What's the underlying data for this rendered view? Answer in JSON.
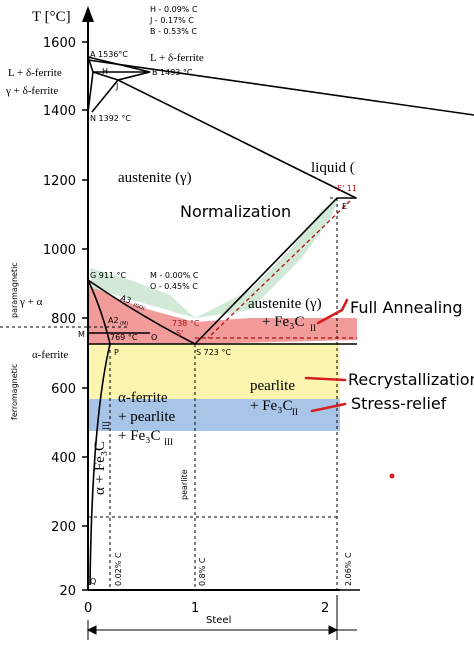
{
  "axes": {
    "y_title": "T [°C]",
    "y_ticks": [
      "1600",
      "1400",
      "1200",
      "1000",
      "800",
      "600",
      "400",
      "200",
      "20"
    ],
    "x_ticks": [
      "0",
      "1",
      "2"
    ],
    "x_label": "Steel"
  },
  "legend_carbon": [
    "H - 0.09% C",
    "J - 0.17% C",
    "B - 0.53% C"
  ],
  "points": {
    "A": "A  1536°C",
    "B": "B  1493 °C",
    "H": "H",
    "J": "J",
    "N": "N  1392 °C",
    "G": "G  911 °C",
    "M_c": "M - 0.00%  C",
    "O_c": "O - 0.45%  C",
    "E": "E",
    "E_prime": "E' 11",
    "S_prime": "S'",
    "temp_738": "738 °C",
    "temp_769": "769 °C",
    "O": "O",
    "M": "M",
    "P": "P",
    "S": "S  723 °C",
    "Q": "Q",
    "A2": "A2",
    "A2_sub": "(M)",
    "A3": "A3",
    "A3_sub": "(GO)"
  },
  "phases": {
    "l_delta_left": "L + δ-ferrite",
    "l_delta_right": "L + δ-ferrite",
    "gamma_delta": "γ + δ-ferrite",
    "austenite": "austenite (γ)",
    "liquid": "liquid (",
    "gamma_alpha": "γ + α",
    "alpha_ferrite": "α-ferrite",
    "austenite_fe3c": "austenite (γ)",
    "austenite_fe3c_2": "+ Fe₃C",
    "austenite_fe3c_sub": "II",
    "alpha_pearlite_1": "α-ferrite",
    "alpha_pearlite_2": "+ pearlite",
    "alpha_pearlite_3": "+ Fe₃C",
    "alpha_pearlite_sub": "III",
    "pearlite_1": "pearlite",
    "pearlite_2": "+ Fe₃C",
    "pearlite_sub": "II",
    "alpha_fe3c": "α + Fe₃C",
    "alpha_fe3c_sub": "III",
    "paramagnetic": "paramagnetic",
    "ferromagnetic": "ferromagnetic",
    "pearlite_vertical": "pearlite"
  },
  "verticals": {
    "c002": "0.02% C",
    "c08": "0.8% C",
    "c206": "2.06% C"
  },
  "annotations": {
    "normalization": "Normalization",
    "full_annealing": "Full Annealing",
    "recrystallization": "Recrystallization",
    "stress_relief": "Stress-relief"
  },
  "colors": {
    "normalization_band": "#cfe8d4",
    "full_annealing_band": "#f08a8a",
    "recrystallization_band": "#fbf5b0",
    "stress_relief_band": "#a8c4e6",
    "annotation_arrow": "#d42020",
    "dashed_line": "#b01010"
  }
}
